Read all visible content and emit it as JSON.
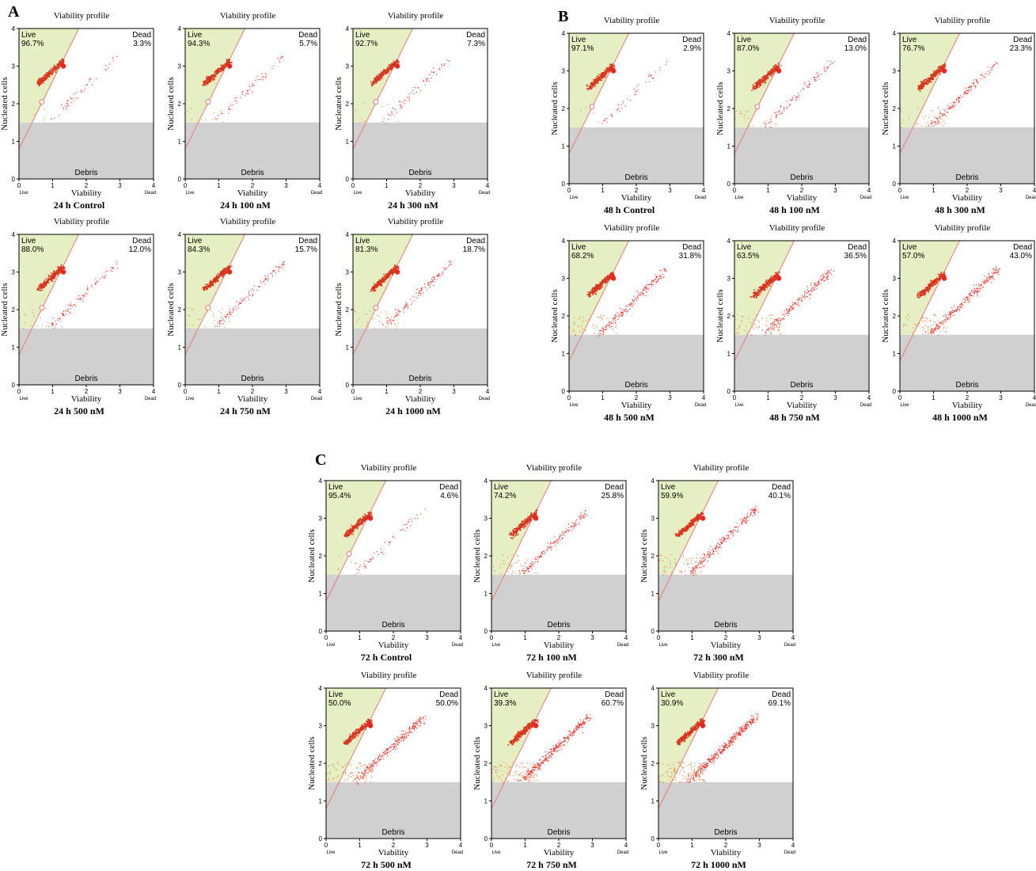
{
  "figure": {
    "panels": [
      {
        "letter": "A"
      },
      {
        "letter": "B"
      },
      {
        "letter": "C"
      }
    ]
  },
  "chart_data": [
    {
      "type": "scatter",
      "panel": "A",
      "title": "Viability profile",
      "caption": "24 h Control",
      "xlabel": "Viability",
      "ylabel": "Nucleated cells",
      "xlim": [
        0,
        4
      ],
      "ylim": [
        0,
        4
      ],
      "x_ticks": [
        "0",
        "1",
        "2",
        "3",
        "4"
      ],
      "y_ticks": [
        "0",
        "1",
        "2",
        "3",
        "4"
      ],
      "x_end_labels": [
        "Live",
        "Dead"
      ],
      "regions": {
        "live": "Live",
        "dead": "Dead",
        "debris": "Debris"
      },
      "live_pct": "96.7%",
      "dead_pct": "3.3%",
      "colors": {
        "live_region": "#e6efc4",
        "debris_region": "#d0d0d0",
        "points": "#e8281e"
      }
    },
    {
      "type": "scatter",
      "panel": "A",
      "title": "Viability profile",
      "caption": "24 h 100 nM",
      "xlabel": "Viability",
      "ylabel": "Nucleated cells",
      "xlim": [
        0,
        4
      ],
      "ylim": [
        0,
        4
      ],
      "x_ticks": [
        "0",
        "1",
        "2",
        "3",
        "4"
      ],
      "y_ticks": [
        "0",
        "1",
        "2",
        "3",
        "4"
      ],
      "x_end_labels": [
        "Live",
        "Dead"
      ],
      "regions": {
        "live": "Live",
        "dead": "Dead",
        "debris": "Debris"
      },
      "live_pct": "94.3%",
      "dead_pct": "5.7%"
    },
    {
      "type": "scatter",
      "panel": "A",
      "title": "Viability profile",
      "caption": "24 h 300 nM",
      "xlabel": "Viability",
      "ylabel": "Nucleated cells",
      "xlim": [
        0,
        4
      ],
      "ylim": [
        0,
        4
      ],
      "x_ticks": [
        "0",
        "1",
        "2",
        "3",
        "4"
      ],
      "y_ticks": [
        "0",
        "1",
        "2",
        "3",
        "4"
      ],
      "x_end_labels": [
        "Live",
        "Dead"
      ],
      "regions": {
        "live": "Live",
        "dead": "Dead",
        "debris": "Debris"
      },
      "live_pct": "92.7%",
      "dead_pct": "7.3%"
    },
    {
      "type": "scatter",
      "panel": "A",
      "title": "Viability profile",
      "caption": "24 h 500 nM",
      "xlabel": "Viability",
      "ylabel": "Nucleated cells",
      "xlim": [
        0,
        4
      ],
      "ylim": [
        0,
        4
      ],
      "x_ticks": [
        "0",
        "1",
        "2",
        "3",
        "4"
      ],
      "y_ticks": [
        "0",
        "1",
        "2",
        "3",
        "4"
      ],
      "x_end_labels": [
        "Live",
        "Dead"
      ],
      "regions": {
        "live": "Live",
        "dead": "Dead",
        "debris": "Debris"
      },
      "live_pct": "88.0%",
      "dead_pct": "12.0%"
    },
    {
      "type": "scatter",
      "panel": "A",
      "title": "Viability profile",
      "caption": "24 h 750 nM",
      "xlabel": "Viability",
      "ylabel": "Nucleated cells",
      "xlim": [
        0,
        4
      ],
      "ylim": [
        0,
        4
      ],
      "x_ticks": [
        "0",
        "1",
        "2",
        "3",
        "4"
      ],
      "y_ticks": [
        "0",
        "1",
        "2",
        "3",
        "4"
      ],
      "x_end_labels": [
        "Live",
        "Dead"
      ],
      "regions": {
        "live": "Live",
        "dead": "Dead",
        "debris": "Debris"
      },
      "live_pct": "84.3%",
      "dead_pct": "15.7%"
    },
    {
      "type": "scatter",
      "panel": "A",
      "title": "Viability profile",
      "caption": "24 h 1000 nM",
      "xlabel": "Viability",
      "ylabel": "Nucleated cells",
      "xlim": [
        0,
        4
      ],
      "ylim": [
        0,
        4
      ],
      "x_ticks": [
        "0",
        "1",
        "2",
        "3",
        "4"
      ],
      "y_ticks": [
        "0",
        "1",
        "2",
        "3",
        "4"
      ],
      "x_end_labels": [
        "Live",
        "Dead"
      ],
      "regions": {
        "live": "Live",
        "dead": "Dead",
        "debris": "Debris"
      },
      "live_pct": "81.3%",
      "dead_pct": "18.7%"
    },
    {
      "type": "scatter",
      "panel": "B",
      "title": "Viability profile",
      "caption": "48 h Control",
      "xlabel": "Viability",
      "ylabel": "Nucleated cells",
      "xlim": [
        0,
        4
      ],
      "ylim": [
        0,
        4
      ],
      "x_ticks": [
        "0",
        "1",
        "2",
        "3",
        "4"
      ],
      "y_ticks": [
        "0",
        "1",
        "2",
        "3",
        "4"
      ],
      "x_end_labels": [
        "Live",
        "Dead"
      ],
      "regions": {
        "live": "Live",
        "dead": "Dead",
        "debris": "Debris"
      },
      "live_pct": "97.1%",
      "dead_pct": "2.9%"
    },
    {
      "type": "scatter",
      "panel": "B",
      "title": "Viability profile",
      "caption": "48 h 100 nM",
      "xlabel": "Viability",
      "ylabel": "Nucleated cells",
      "xlim": [
        0,
        4
      ],
      "ylim": [
        0,
        4
      ],
      "x_ticks": [
        "0",
        "1",
        "2",
        "3",
        "4"
      ],
      "y_ticks": [
        "0",
        "1",
        "2",
        "3",
        "4"
      ],
      "x_end_labels": [
        "Live",
        "Dead"
      ],
      "regions": {
        "live": "Live",
        "dead": "Dead",
        "debris": "Debris"
      },
      "live_pct": "87.0%",
      "dead_pct": "13.0%"
    },
    {
      "type": "scatter",
      "panel": "B",
      "title": "Viability profile",
      "caption": "48 h 300 nM",
      "xlabel": "Viability",
      "ylabel": "Nucleated cells",
      "xlim": [
        0,
        4
      ],
      "ylim": [
        0,
        4
      ],
      "x_ticks": [
        "0",
        "1",
        "2",
        "3",
        "4"
      ],
      "y_ticks": [
        "0",
        "1",
        "2",
        "3",
        "4"
      ],
      "x_end_labels": [
        "Live",
        "Dead"
      ],
      "regions": {
        "live": "Live",
        "dead": "Dead",
        "debris": "Debris"
      },
      "live_pct": "76.7%",
      "dead_pct": "23.3%"
    },
    {
      "type": "scatter",
      "panel": "B",
      "title": "Viability profile",
      "caption": "48 h 500 nM",
      "xlabel": "Viability",
      "ylabel": "Nucleated cells",
      "xlim": [
        0,
        4
      ],
      "ylim": [
        0,
        4
      ],
      "x_ticks": [
        "0",
        "1",
        "2",
        "3",
        "4"
      ],
      "y_ticks": [
        "0",
        "1",
        "2",
        "3",
        "4"
      ],
      "x_end_labels": [
        "Live",
        "Dead"
      ],
      "regions": {
        "live": "Live",
        "dead": "Dead",
        "debris": "Debris"
      },
      "live_pct": "68.2%",
      "dead_pct": "31.8%"
    },
    {
      "type": "scatter",
      "panel": "B",
      "title": "Viability profile",
      "caption": "48 h 750 nM",
      "xlabel": "Viability",
      "ylabel": "Nucleated cells",
      "xlim": [
        0,
        4
      ],
      "ylim": [
        0,
        4
      ],
      "x_ticks": [
        "0",
        "1",
        "2",
        "3",
        "4"
      ],
      "y_ticks": [
        "0",
        "1",
        "2",
        "3",
        "4"
      ],
      "x_end_labels": [
        "Live",
        "Dead"
      ],
      "regions": {
        "live": "Live",
        "dead": "Dead",
        "debris": "Debris"
      },
      "live_pct": "63.5%",
      "dead_pct": "36.5%"
    },
    {
      "type": "scatter",
      "panel": "B",
      "title": "Viability profile",
      "caption": "48 h 1000 nM",
      "xlabel": "Viability",
      "ylabel": "Nucleated cells",
      "xlim": [
        0,
        4
      ],
      "ylim": [
        0,
        4
      ],
      "x_ticks": [
        "0",
        "1",
        "2",
        "3",
        "4"
      ],
      "y_ticks": [
        "0",
        "1",
        "2",
        "3",
        "4"
      ],
      "x_end_labels": [
        "Live",
        "Dead"
      ],
      "regions": {
        "live": "Live",
        "dead": "Dead",
        "debris": "Debris"
      },
      "live_pct": "57.0%",
      "dead_pct": "43.0%"
    },
    {
      "type": "scatter",
      "panel": "C",
      "title": "Viability profile",
      "caption": "72 h Control",
      "xlabel": "Viability",
      "ylabel": "Nucleated cells",
      "xlim": [
        0,
        4
      ],
      "ylim": [
        0,
        4
      ],
      "x_ticks": [
        "0",
        "1",
        "2",
        "3",
        "4"
      ],
      "y_ticks": [
        "0",
        "1",
        "2",
        "3",
        "4"
      ],
      "x_end_labels": [
        "Live",
        "Dead"
      ],
      "regions": {
        "live": "Live",
        "dead": "Dead",
        "debris": "Debris"
      },
      "live_pct": "95.4%",
      "dead_pct": "4.6%"
    },
    {
      "type": "scatter",
      "panel": "C",
      "title": "Viability profile",
      "caption": "72 h 100 nM",
      "xlabel": "Viability",
      "ylabel": "Nucleated cells",
      "xlim": [
        0,
        4
      ],
      "ylim": [
        0,
        4
      ],
      "x_ticks": [
        "0",
        "1",
        "2",
        "3",
        "4"
      ],
      "y_ticks": [
        "0",
        "1",
        "2",
        "3",
        "4"
      ],
      "x_end_labels": [
        "Live",
        "Dead"
      ],
      "regions": {
        "live": "Live",
        "dead": "Dead",
        "debris": "Debris"
      },
      "live_pct": "74.2%",
      "dead_pct": "25.8%"
    },
    {
      "type": "scatter",
      "panel": "C",
      "title": "Viability profile",
      "caption": "72 h 300 nM",
      "xlabel": "Viability",
      "ylabel": "Nucleated cells",
      "xlim": [
        0,
        4
      ],
      "ylim": [
        0,
        4
      ],
      "x_ticks": [
        "0",
        "1",
        "2",
        "3",
        "4"
      ],
      "y_ticks": [
        "0",
        "1",
        "2",
        "3",
        "4"
      ],
      "x_end_labels": [
        "Live",
        "Dead"
      ],
      "regions": {
        "live": "Live",
        "dead": "Dead",
        "debris": "Debris"
      },
      "live_pct": "59.9%",
      "dead_pct": "40.1%"
    },
    {
      "type": "scatter",
      "panel": "C",
      "title": "Viability profile",
      "caption": "72 h 500 nM",
      "xlabel": "Viability",
      "ylabel": "Nucleated cells",
      "xlim": [
        0,
        4
      ],
      "ylim": [
        0,
        4
      ],
      "x_ticks": [
        "0",
        "1",
        "2",
        "3",
        "4"
      ],
      "y_ticks": [
        "0",
        "1",
        "2",
        "3",
        "4"
      ],
      "x_end_labels": [
        "Live",
        "Dead"
      ],
      "regions": {
        "live": "Live",
        "dead": "Dead",
        "debris": "Debris"
      },
      "live_pct": "50.0%",
      "dead_pct": "50.0%"
    },
    {
      "type": "scatter",
      "panel": "C",
      "title": "Viability profile",
      "caption": "72 h 750 nM",
      "xlabel": "Viability",
      "ylabel": "Nucleated cells",
      "xlim": [
        0,
        4
      ],
      "ylim": [
        0,
        4
      ],
      "x_ticks": [
        "0",
        "1",
        "2",
        "3",
        "4"
      ],
      "y_ticks": [
        "0",
        "1",
        "2",
        "3",
        "4"
      ],
      "x_end_labels": [
        "Live",
        "Dead"
      ],
      "regions": {
        "live": "Live",
        "dead": "Dead",
        "debris": "Debris"
      },
      "live_pct": "39.3%",
      "dead_pct": "60.7%"
    },
    {
      "type": "scatter",
      "panel": "C",
      "title": "Viability profile",
      "caption": "72 h 1000 nM",
      "xlabel": "Viability",
      "ylabel": "Nucleated cells",
      "xlim": [
        0,
        4
      ],
      "ylim": [
        0,
        4
      ],
      "x_ticks": [
        "0",
        "1",
        "2",
        "3",
        "4"
      ],
      "y_ticks": [
        "0",
        "1",
        "2",
        "3",
        "4"
      ],
      "x_end_labels": [
        "Live",
        "Dead"
      ],
      "regions": {
        "live": "Live",
        "dead": "Dead",
        "debris": "Debris"
      },
      "live_pct": "30.9%",
      "dead_pct": "69.1%"
    }
  ]
}
